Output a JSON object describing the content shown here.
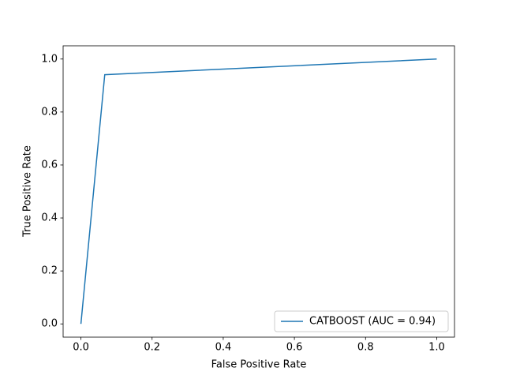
{
  "chart_data": {
    "type": "line",
    "xlabel": "False Positive Rate",
    "ylabel": "True Positive Rate",
    "x": [
      0,
      0.067,
      1
    ],
    "series": [
      {
        "name": "CATBOOST (AUC = 0.94)",
        "color": "#1f77b4",
        "values": [
          0,
          0.941,
          1
        ]
      }
    ],
    "xlim": [
      -0.05,
      1.05
    ],
    "ylim": [
      -0.05,
      1.05
    ],
    "xticks": [
      {
        "value": 0,
        "label": "0.0"
      },
      0.2,
      0.4,
      0.6,
      0.8,
      {
        "value": 1,
        "label": "1.0"
      }
    ],
    "yticks": [
      {
        "value": 0,
        "label": "0.0"
      },
      0.2,
      0.4,
      0.6,
      0.8,
      {
        "value": 1,
        "label": "1.0"
      }
    ],
    "legend": "lower right"
  }
}
